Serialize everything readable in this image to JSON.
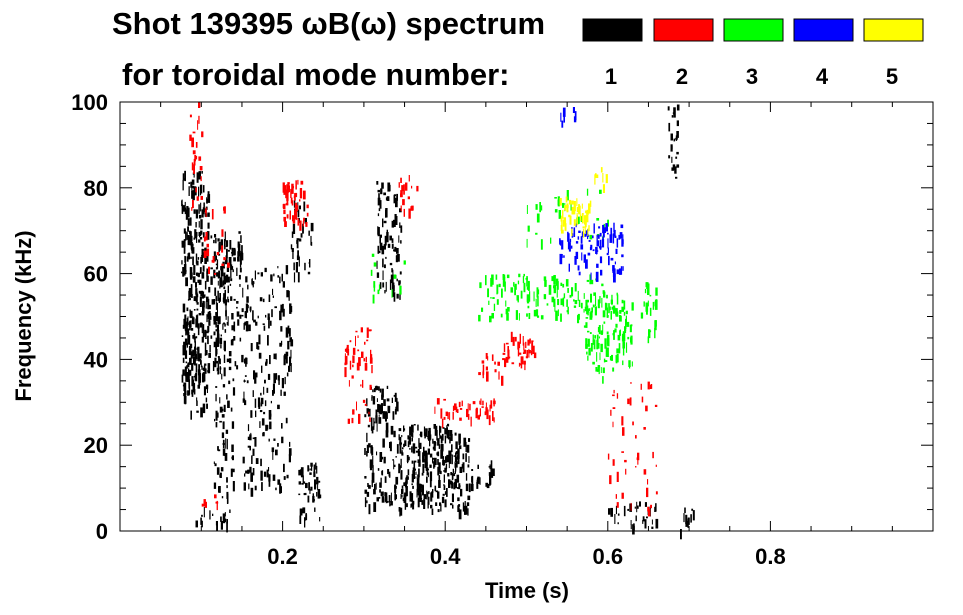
{
  "chart_data": {
    "type": "heatmap",
    "title_line1": "Shot 139395 ωB(ω) spectrum",
    "title_line2": "for toroidal mode number:",
    "xlabel": "Time (s)",
    "ylabel": "Frequency (kHz)",
    "xlim": [
      0,
      1.0
    ],
    "ylim": [
      0,
      100
    ],
    "x_ticks": [
      {
        "value": 0.2,
        "label": "0.2"
      },
      {
        "value": 0.4,
        "label": "0.4"
      },
      {
        "value": 0.6,
        "label": "0.6"
      },
      {
        "value": 0.8,
        "label": "0.8"
      }
    ],
    "y_ticks": [
      {
        "value": 0,
        "label": "0"
      },
      {
        "value": 20,
        "label": "20"
      },
      {
        "value": 40,
        "label": "40"
      },
      {
        "value": 60,
        "label": "60"
      },
      {
        "value": 80,
        "label": "80"
      },
      {
        "value": 100,
        "label": "100"
      }
    ],
    "legend": [
      {
        "mode": "1",
        "color": "#000000"
      },
      {
        "mode": "2",
        "color": "#ff0000"
      },
      {
        "mode": "3",
        "color": "#00ff00"
      },
      {
        "mode": "4",
        "color": "#0000ff"
      },
      {
        "mode": "5",
        "color": "#ffff00"
      }
    ],
    "regions": [
      {
        "mode": 1,
        "t": [
          0.075,
          0.108
        ],
        "f": [
          28,
          84
        ],
        "density": 0.55
      },
      {
        "mode": 1,
        "t": [
          0.08,
          0.15
        ],
        "f": [
          38,
          70
        ],
        "density": 0.35
      },
      {
        "mode": 1,
        "t": [
          0.115,
          0.14
        ],
        "f": [
          8,
          68
        ],
        "density": 0.3
      },
      {
        "mode": 1,
        "t": [
          0.15,
          0.21
        ],
        "f": [
          10,
          62
        ],
        "density": 0.25
      },
      {
        "mode": 1,
        "t": [
          0.21,
          0.235
        ],
        "f": [
          60,
          78
        ],
        "density": 0.3
      },
      {
        "mode": 1,
        "t": [
          0.218,
          0.245
        ],
        "f": [
          3,
          16
        ],
        "density": 0.55
      },
      {
        "mode": 1,
        "t": [
          0.3,
          0.34
        ],
        "f": [
          6,
          34
        ],
        "density": 0.45
      },
      {
        "mode": 1,
        "t": [
          0.315,
          0.345
        ],
        "f": [
          55,
          82
        ],
        "density": 0.4
      },
      {
        "mode": 1,
        "t": [
          0.34,
          0.43
        ],
        "f": [
          5,
          25
        ],
        "density": 0.65
      },
      {
        "mode": 1,
        "t": [
          0.43,
          0.46
        ],
        "f": [
          10,
          17
        ],
        "density": 0.4
      },
      {
        "mode": 1,
        "t": [
          0.09,
          0.14
        ],
        "f": [
          2,
          6
        ],
        "density": 0.35
      },
      {
        "mode": 1,
        "t": [
          0.6,
          0.66
        ],
        "f": [
          1,
          7
        ],
        "density": 0.35
      },
      {
        "mode": 1,
        "t": [
          0.673,
          0.685
        ],
        "f": [
          80,
          100
        ],
        "density": 0.4
      },
      {
        "mode": 1,
        "t": [
          0.683,
          0.705
        ],
        "f": [
          0,
          6
        ],
        "density": 0.3
      },
      {
        "mode": 2,
        "t": [
          0.085,
          0.1
        ],
        "f": [
          75,
          100
        ],
        "density": 0.25
      },
      {
        "mode": 2,
        "t": [
          0.1,
          0.135
        ],
        "f": [
          60,
          76
        ],
        "density": 0.15
      },
      {
        "mode": 2,
        "t": [
          0.2,
          0.23
        ],
        "f": [
          72,
          82
        ],
        "density": 0.6
      },
      {
        "mode": 2,
        "t": [
          0.275,
          0.31
        ],
        "f": [
          26,
          48
        ],
        "density": 0.25
      },
      {
        "mode": 2,
        "t": [
          0.34,
          0.365
        ],
        "f": [
          75,
          83
        ],
        "density": 0.35
      },
      {
        "mode": 2,
        "t": [
          0.38,
          0.46
        ],
        "f": [
          26,
          31
        ],
        "density": 0.45
      },
      {
        "mode": 2,
        "t": [
          0.44,
          0.47
        ],
        "f": [
          36,
          42
        ],
        "density": 0.35
      },
      {
        "mode": 2,
        "t": [
          0.47,
          0.51
        ],
        "f": [
          39,
          47
        ],
        "density": 0.5
      },
      {
        "mode": 2,
        "t": [
          0.6,
          0.66
        ],
        "f": [
          5,
          35
        ],
        "density": 0.1
      },
      {
        "mode": 2,
        "t": [
          0.1,
          0.12
        ],
        "f": [
          6,
          10
        ],
        "density": 0.2
      },
      {
        "mode": 3,
        "t": [
          0.44,
          0.6
        ],
        "f": [
          50,
          60
        ],
        "density": 0.3
      },
      {
        "mode": 3,
        "t": [
          0.57,
          0.63
        ],
        "f": [
          36,
          56
        ],
        "density": 0.4
      },
      {
        "mode": 3,
        "t": [
          0.64,
          0.66
        ],
        "f": [
          45,
          58
        ],
        "density": 0.35
      },
      {
        "mode": 3,
        "t": [
          0.5,
          0.6
        ],
        "f": [
          68,
          80
        ],
        "density": 0.1
      },
      {
        "mode": 3,
        "t": [
          0.3,
          0.35
        ],
        "f": [
          55,
          65
        ],
        "density": 0.1
      },
      {
        "mode": 4,
        "t": [
          0.54,
          0.62
        ],
        "f": [
          60,
          72
        ],
        "density": 0.4
      },
      {
        "mode": 4,
        "t": [
          0.54,
          0.56
        ],
        "f": [
          95,
          100
        ],
        "density": 0.3
      },
      {
        "mode": 5,
        "t": [
          0.54,
          0.58
        ],
        "f": [
          70,
          78
        ],
        "density": 0.6
      },
      {
        "mode": 5,
        "t": [
          0.58,
          0.6
        ],
        "f": [
          80,
          86
        ],
        "density": 0.25
      }
    ]
  }
}
